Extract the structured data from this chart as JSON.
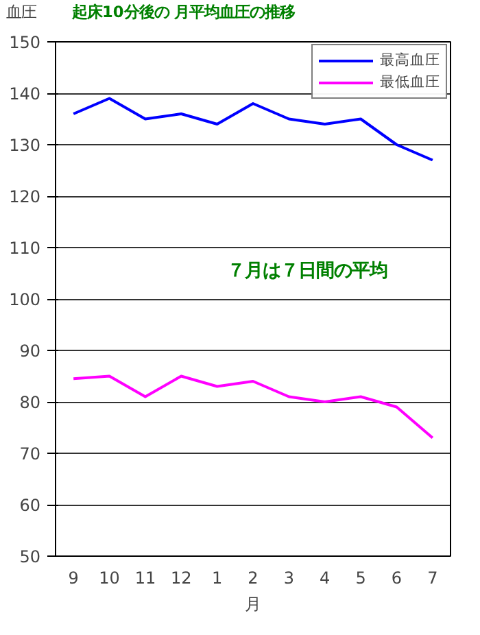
{
  "chart_data": {
    "type": "line",
    "title": "起床10分後の 月平均血圧の推移",
    "xlabel": "月",
    "ylabel": "血圧",
    "annotations": [
      "７月は７日間の平均"
    ],
    "categories": [
      "9",
      "10",
      "11",
      "12",
      "1",
      "2",
      "3",
      "4",
      "5",
      "6",
      "7"
    ],
    "series": [
      {
        "name": "最高血圧",
        "color": "#0000ff",
        "values": [
          136,
          139,
          135,
          136,
          134,
          138,
          135,
          134,
          135,
          130,
          127
        ]
      },
      {
        "name": "最低血圧",
        "color": "#ff00ff",
        "values": [
          84.5,
          85,
          81,
          85,
          83,
          84,
          81,
          80,
          81,
          79,
          73
        ]
      }
    ],
    "ylim": [
      50,
      150
    ],
    "yticks": [
      50,
      60,
      70,
      80,
      90,
      100,
      110,
      120,
      130,
      140,
      150
    ],
    "grid": "y",
    "legend": "top right",
    "marker": "none",
    "line_style": "solid"
  }
}
